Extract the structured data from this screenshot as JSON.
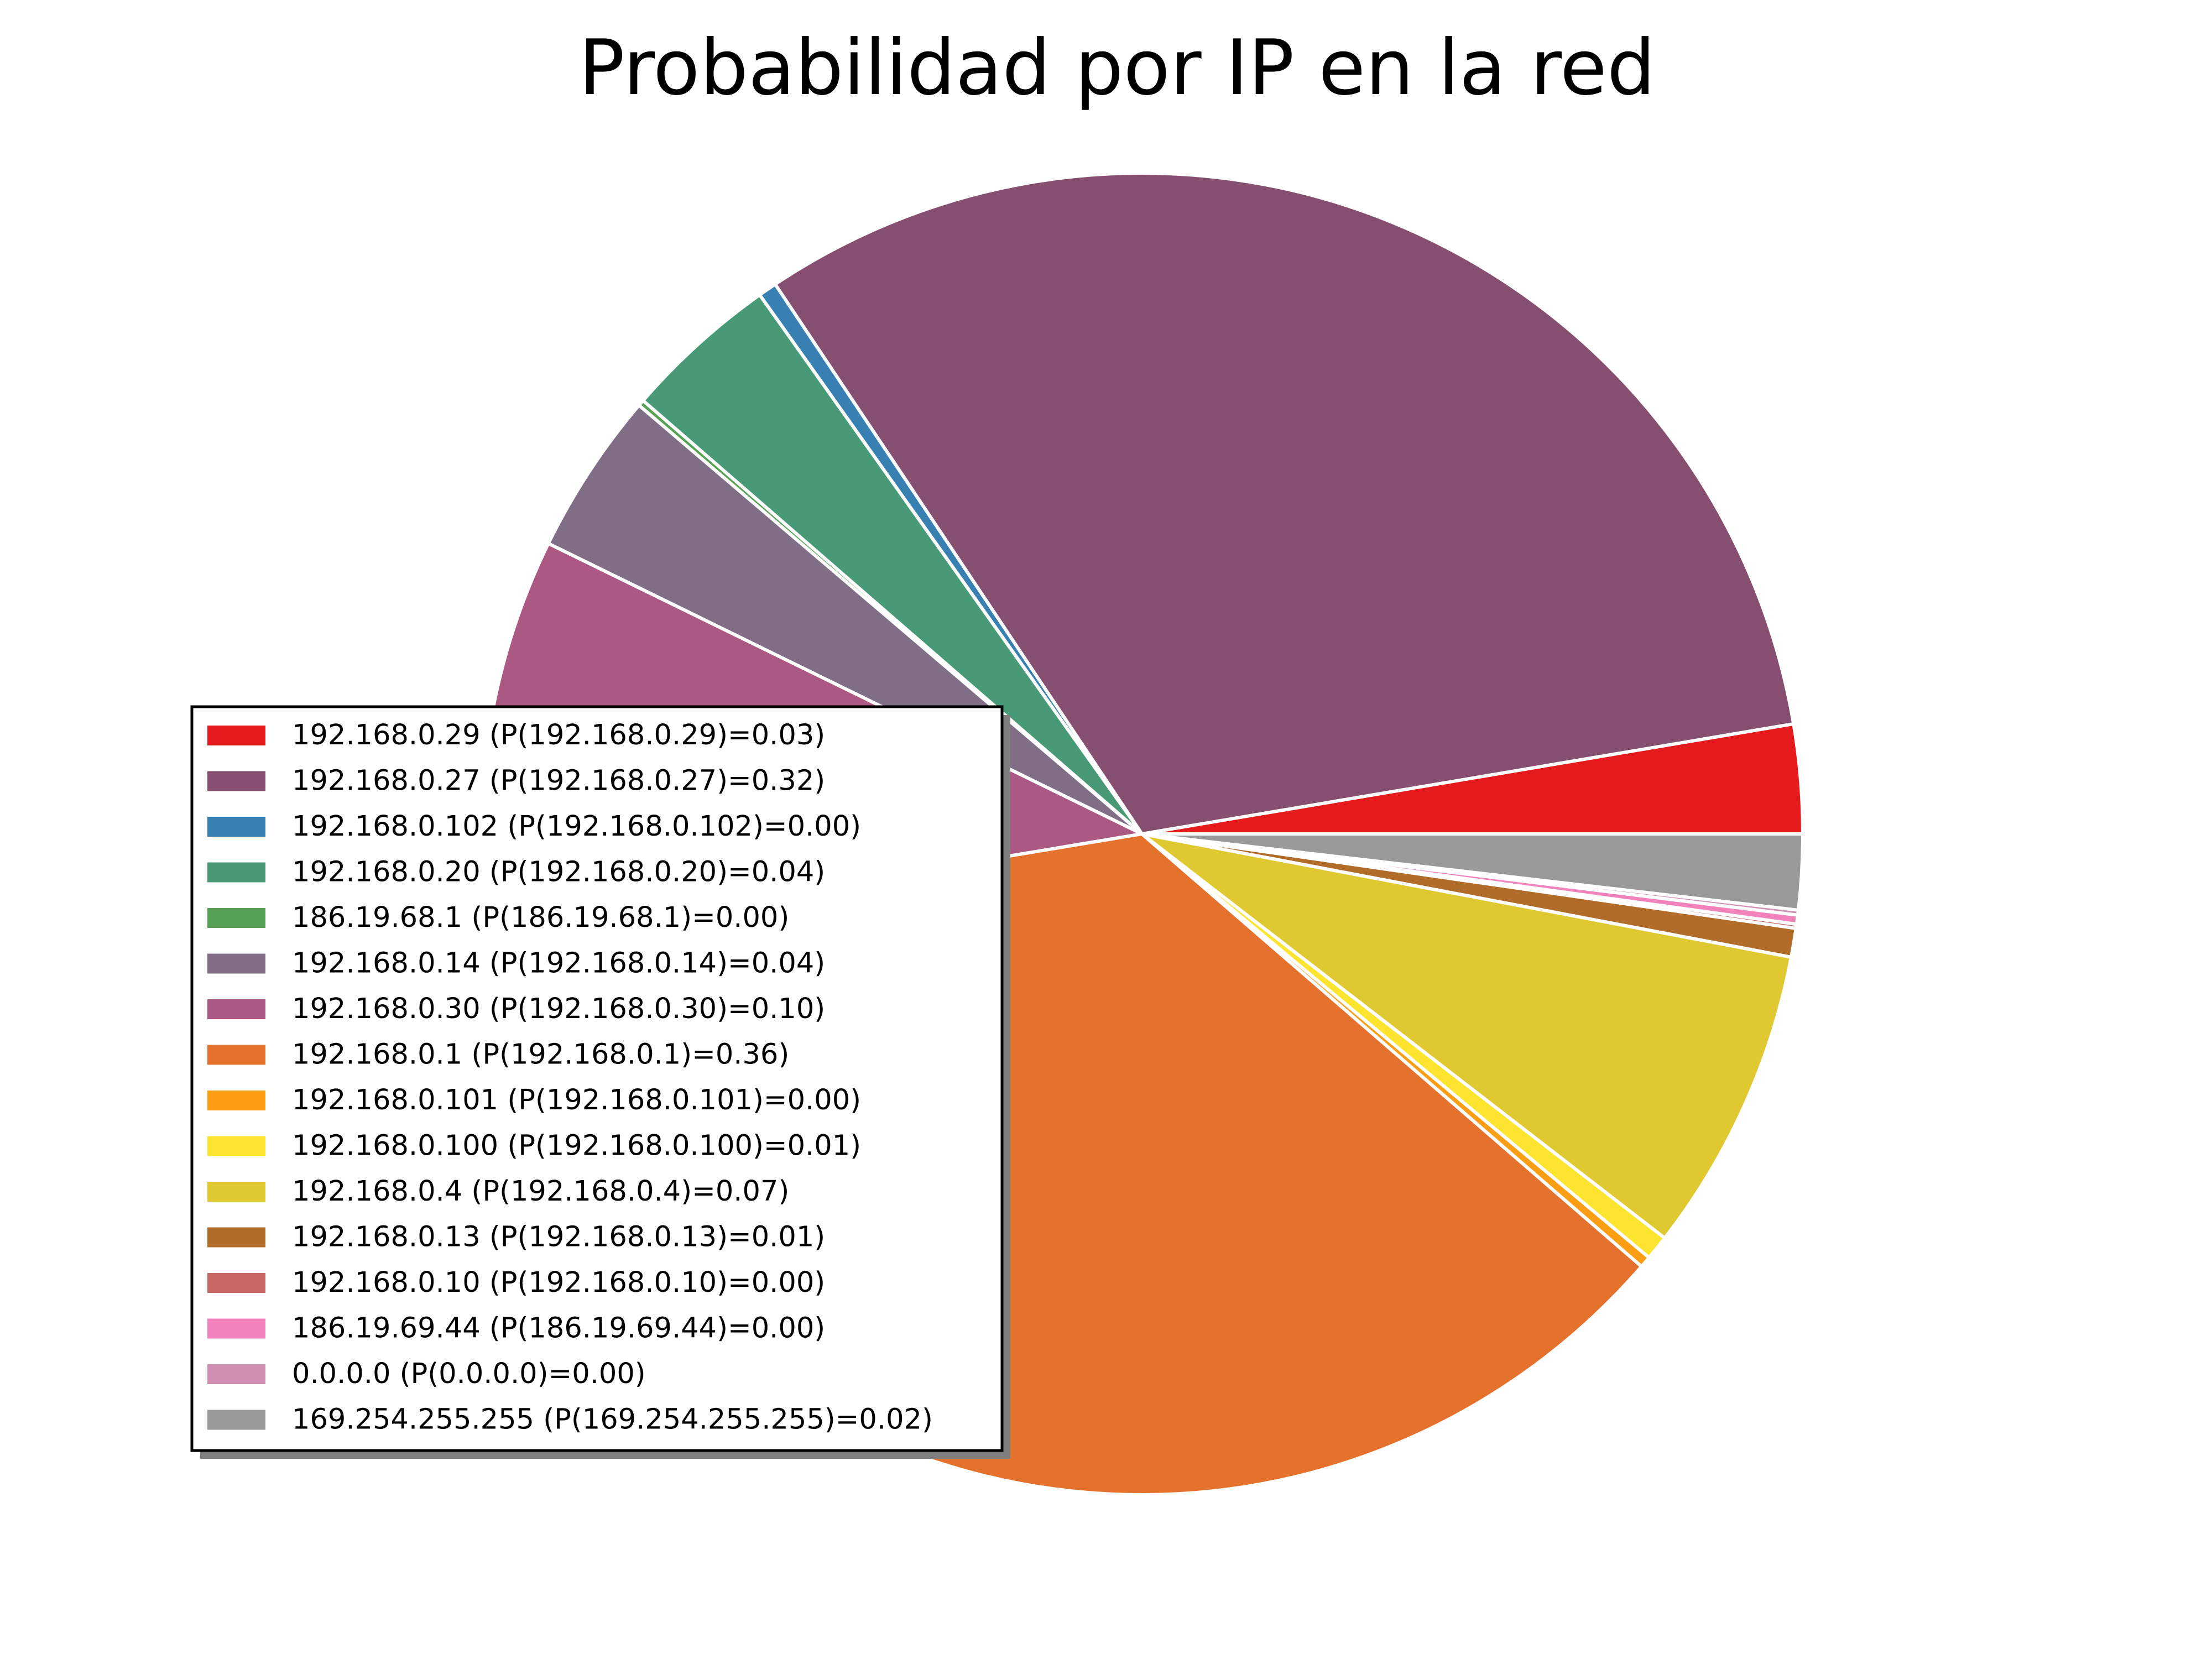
{
  "chart_data": {
    "type": "pie",
    "title": "Probabilidad por IP en la red",
    "start_angle_deg": 0,
    "direction": "counterclockwise",
    "legend_placement": "center-left",
    "slices": [
      {
        "label": "192.168.0.29 (P(192.168.0.29)=0.03)",
        "value": 0.0265,
        "color": "#e41a1c"
      },
      {
        "label": "192.168.0.27 (P(192.168.0.27)=0.32)",
        "value": 0.3154,
        "color": "#874f6f"
      },
      {
        "label": "192.168.0.102 (P(192.168.0.102)=0.00)",
        "value": 0.0045,
        "color": "#3880b1"
      },
      {
        "label": "192.168.0.20 (P(192.168.0.20)=0.04)",
        "value": 0.0378,
        "color": "#489a77"
      },
      {
        "label": "186.19.68.1 (P(186.19.68.1)=0.00)",
        "value": 0.0015,
        "color": "#57a155"
      },
      {
        "label": "192.168.0.14 (P(192.168.0.14)=0.04)",
        "value": 0.0397,
        "color": "#7f6e85"
      },
      {
        "label": "192.168.0.30 (P(192.168.0.30)=0.10)",
        "value": 0.0982,
        "color": "#ab5882"
      },
      {
        "label": "192.168.0.1 (P(192.168.0.1)=0.36)",
        "value": 0.3583,
        "color": "#e4722d"
      },
      {
        "label": "192.168.0.101 (P(192.168.0.101)=0.00)",
        "value": 0.0028,
        "color": "#fb9e14"
      },
      {
        "label": "192.168.0.100 (P(192.168.0.100)=0.01)",
        "value": 0.006,
        "color": "#fde42e"
      },
      {
        "label": "192.168.0.4 (P(192.168.0.4)=0.07)",
        "value": 0.0745,
        "color": "#e0c830"
      },
      {
        "label": "192.168.0.13 (P(192.168.0.13)=0.01)",
        "value": 0.007,
        "color": "#b16c29"
      },
      {
        "label": "192.168.0.10 (P(192.168.0.10)=0.00)",
        "value": 0.001,
        "color": "#c66764"
      },
      {
        "label": "186.19.69.44 (P(186.19.69.44)=0.00)",
        "value": 0.0022,
        "color": "#f182bc"
      },
      {
        "label": "0.0.0.0 (P(0.0.0.0)=0.00)",
        "value": 0.0012,
        "color": "#d08fb1"
      },
      {
        "label": "169.254.255.255 (P(169.254.255.255)=0.02)",
        "value": 0.0183,
        "color": "#999999"
      }
    ]
  }
}
